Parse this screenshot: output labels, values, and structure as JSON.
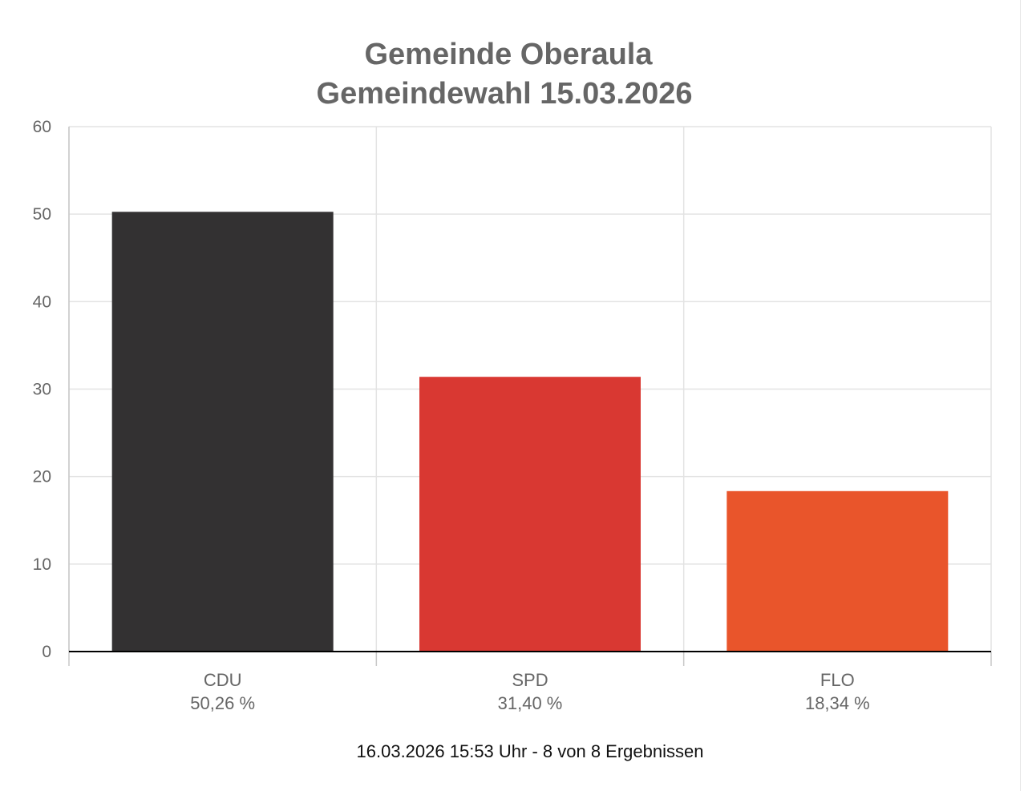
{
  "chart_data": {
    "type": "bar",
    "title": [
      "Gemeinde Oberaula",
      "Gemeindewahl 15.03.2026"
    ],
    "categories": [
      "CDU",
      "SPD",
      "FLO"
    ],
    "values": [
      50.26,
      31.4,
      18.34
    ],
    "value_labels": [
      "50,26 %",
      "31,40 %",
      "18,34 %"
    ],
    "colors": [
      "#333132",
      "#d93832",
      "#e9552b"
    ],
    "ylim": [
      0,
      60
    ],
    "yticks": [
      "0",
      "10",
      "20",
      "30",
      "40",
      "50",
      "60"
    ],
    "grid": true,
    "legend": "none"
  },
  "footer": "16.03.2026 15:53 Uhr - 8 von 8 Ergebnissen"
}
